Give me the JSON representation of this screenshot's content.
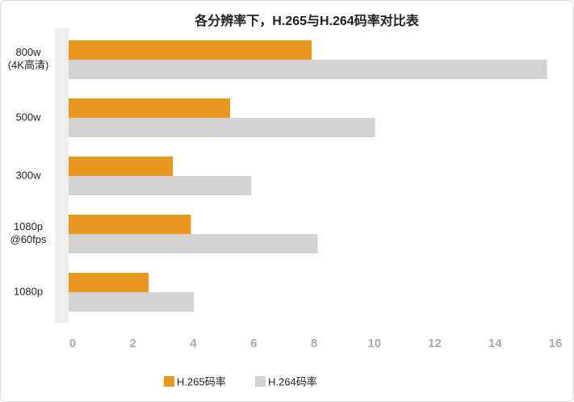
{
  "chart_data": {
    "type": "hbar",
    "title": "各分辨率下，H.265与H.264码率对比表",
    "categories": [
      "800w\n(4K高清)",
      "500w",
      "300w",
      "1080p\n@60fps",
      "1080p"
    ],
    "series": [
      {
        "name": "H.265码率",
        "color": "#e8971f",
        "values": [
          8,
          5.3,
          3.4,
          4,
          2.6
        ]
      },
      {
        "name": "H.264码率",
        "color": "#d3d3d3",
        "values": [
          15.8,
          10.1,
          6,
          8.2,
          4.1
        ]
      }
    ],
    "xlim": [
      0,
      16
    ],
    "xticks": [
      0,
      2,
      4,
      6,
      8,
      10,
      12,
      14,
      16
    ],
    "grid": false,
    "legend": "bottom"
  }
}
